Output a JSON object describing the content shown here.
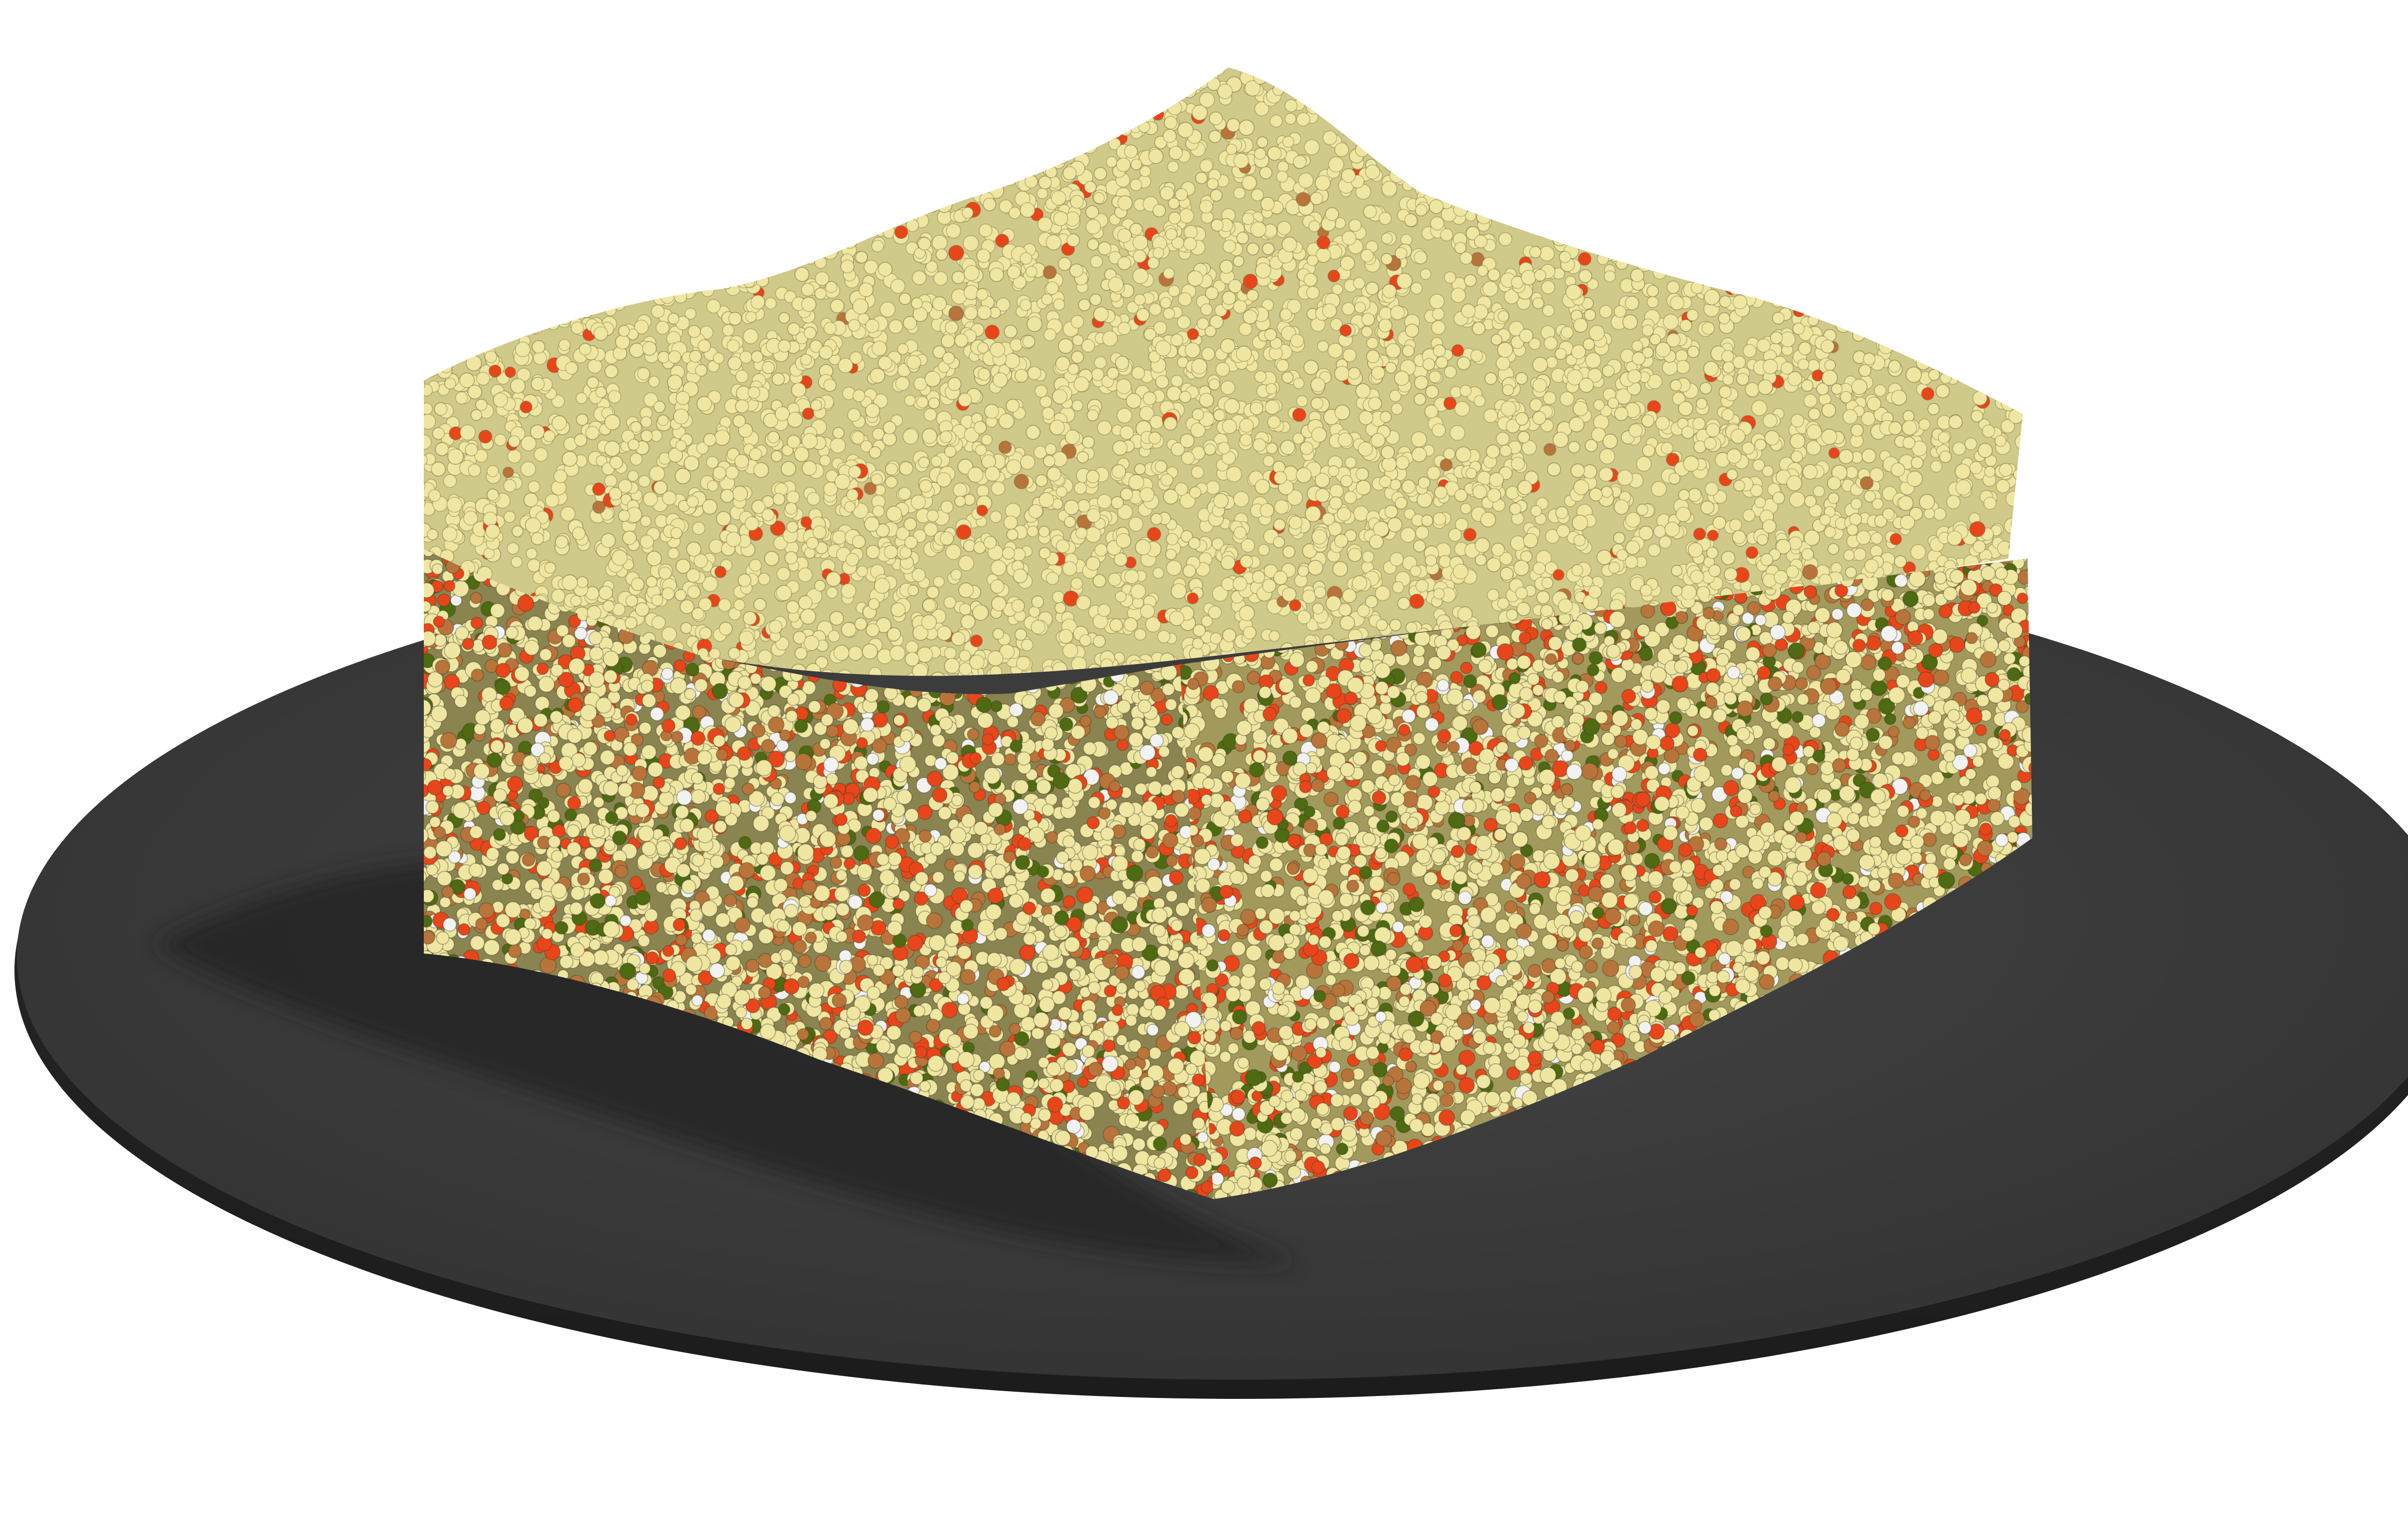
{
  "scene": {
    "background_color": "#ffffff",
    "platter_color": "#3d3d3d",
    "shadow_color": "#262626",
    "particle_colors": {
      "pale_yellow": "#efe6a2",
      "red_orange": "#e8461a",
      "tan_brown": "#b8743a",
      "olive_green": "#4e6a12",
      "white": "#f2f2f2"
    }
  }
}
